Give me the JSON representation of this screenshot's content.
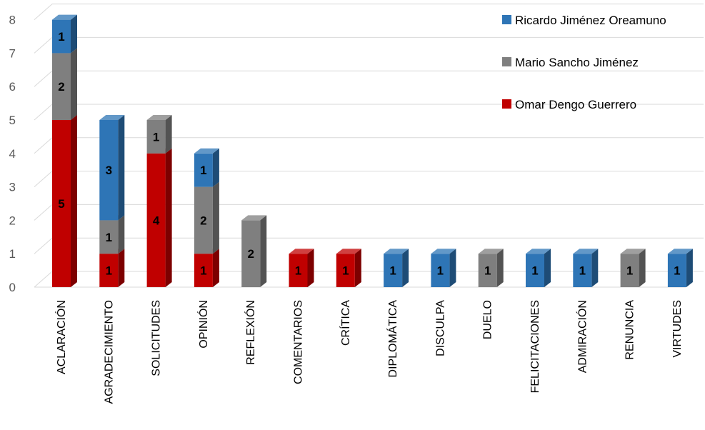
{
  "chart_data": {
    "type": "bar",
    "stacked": true,
    "style": "3d-column",
    "categories": [
      "ACLARACIÓN",
      "AGRADECIMIENTO",
      "SOLICITUDES",
      "OPINIÓN",
      "REFLEXIÓN",
      "COMENTARIOS",
      "CRÍTICA",
      "DIPLOMÁTICA",
      "DISCULPA",
      "DUELO",
      "FELICITACIONES",
      "ADMIRACIÓN",
      "RENUNCIA",
      "VIRTUDES"
    ],
    "series": [
      {
        "name": "Omar Dengo Guerrero",
        "color": "#C00000",
        "values": [
          5,
          1,
          4,
          1,
          0,
          1,
          1,
          0,
          0,
          0,
          0,
          0,
          0,
          0
        ]
      },
      {
        "name": "Mario Sancho Jiménez",
        "color": "#7F7F7F",
        "values": [
          2,
          1,
          1,
          2,
          2,
          0,
          0,
          0,
          0,
          1,
          0,
          0,
          1,
          0
        ]
      },
      {
        "name": "Ricardo Jiménez Oreamuno",
        "color": "#2E75B6",
        "values": [
          1,
          3,
          0,
          1,
          0,
          0,
          0,
          1,
          1,
          0,
          1,
          1,
          0,
          1
        ]
      }
    ],
    "yticks": [
      "0",
      "1",
      "2",
      "3",
      "4",
      "5",
      "6",
      "7",
      "8"
    ],
    "ylim": [
      0,
      8
    ],
    "grid": true,
    "legend_position": "top-right",
    "legend_order": [
      "Ricardo Jiménez Oreamuno",
      "Mario Sancho Jiménez",
      "Omar Dengo Guerrero"
    ],
    "title": "",
    "xlabel": "",
    "ylabel": ""
  }
}
